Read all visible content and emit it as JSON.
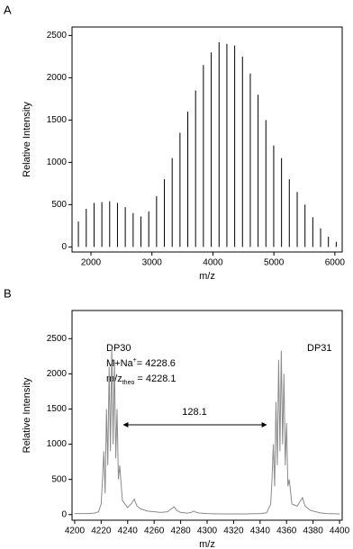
{
  "chart_data": [
    {
      "type": "spectrum",
      "panel_label": "A",
      "x_label": "m/z",
      "y_label": "Relative Intensity",
      "color": "#000000",
      "x": [
        1794,
        1923,
        2051,
        2179,
        2307,
        2435,
        2563,
        2692,
        2820,
        2948,
        3076,
        3204,
        3332,
        3460,
        3588,
        3716,
        3844,
        3973,
        4101,
        4229,
        4357,
        4485,
        4613,
        4741,
        4869,
        4997,
        5125,
        5253,
        5382,
        5510,
        5638,
        5766,
        5894,
        6022
      ],
      "values": [
        300,
        450,
        520,
        530,
        540,
        520,
        470,
        400,
        360,
        420,
        600,
        800,
        1050,
        1350,
        1600,
        1850,
        2150,
        2300,
        2420,
        2400,
        2380,
        2250,
        2050,
        1800,
        1500,
        1200,
        1050,
        800,
        650,
        500,
        350,
        220,
        120,
        60
      ],
      "xlim": [
        1690,
        6120
      ],
      "ylim": [
        -60,
        2600
      ],
      "xticks": [
        2000,
        3000,
        4000,
        5000,
        6000
      ],
      "yticks": [
        0,
        500,
        1000,
        1500,
        2000,
        2500
      ]
    },
    {
      "type": "line",
      "panel_label": "B",
      "x_label": "m/z",
      "y_label": "Relative Intensity",
      "color": "#8a8a8a",
      "x": [
        4200,
        4210,
        4215,
        4218,
        4220,
        4221,
        4222,
        4223,
        4224,
        4225,
        4226,
        4227,
        4228,
        4229,
        4230,
        4231,
        4232,
        4233,
        4234,
        4236,
        4240,
        4243,
        4245,
        4247,
        4250,
        4255,
        4260,
        4265,
        4270,
        4273,
        4275,
        4277,
        4280,
        4285,
        4288,
        4290,
        4292,
        4295,
        4300,
        4310,
        4320,
        4330,
        4340,
        4345,
        4348,
        4349,
        4350,
        4351,
        4352,
        4353,
        4354,
        4355,
        4356,
        4357,
        4358,
        4359,
        4360,
        4361,
        4362,
        4364,
        4368,
        4370,
        4372,
        4374,
        4378,
        4385,
        4390,
        4400
      ],
      "values": [
        15,
        15,
        20,
        40,
        150,
        500,
        900,
        300,
        1500,
        700,
        2100,
        900,
        2380,
        1000,
        2200,
        800,
        1500,
        500,
        700,
        200,
        100,
        160,
        220,
        120,
        80,
        50,
        40,
        30,
        40,
        80,
        110,
        60,
        30,
        20,
        30,
        50,
        30,
        20,
        15,
        10,
        10,
        10,
        15,
        25,
        150,
        500,
        1000,
        400,
        1600,
        700,
        2200,
        900,
        2330,
        1000,
        2000,
        700,
        1300,
        400,
        500,
        150,
        120,
        180,
        240,
        120,
        60,
        25,
        15,
        10
      ],
      "xlim": [
        4198,
        4402
      ],
      "ylim": [
        -80,
        2900
      ],
      "xticks": [
        4200,
        4220,
        4240,
        4260,
        4280,
        4300,
        4320,
        4340,
        4360,
        4380,
        4400
      ],
      "yticks": [
        0,
        500,
        1000,
        1500,
        2000,
        2500
      ],
      "annotations": {
        "dp30": "DP30",
        "dp31": "DP31",
        "mass_found": {
          "text": "M+Na",
          "sup": "+",
          "rest": "= 4228.6"
        },
        "mass_theo": {
          "text": "m/z",
          "sub": "theo",
          "rest": "= 4228.1"
        },
        "spacing": "128.1"
      }
    }
  ]
}
